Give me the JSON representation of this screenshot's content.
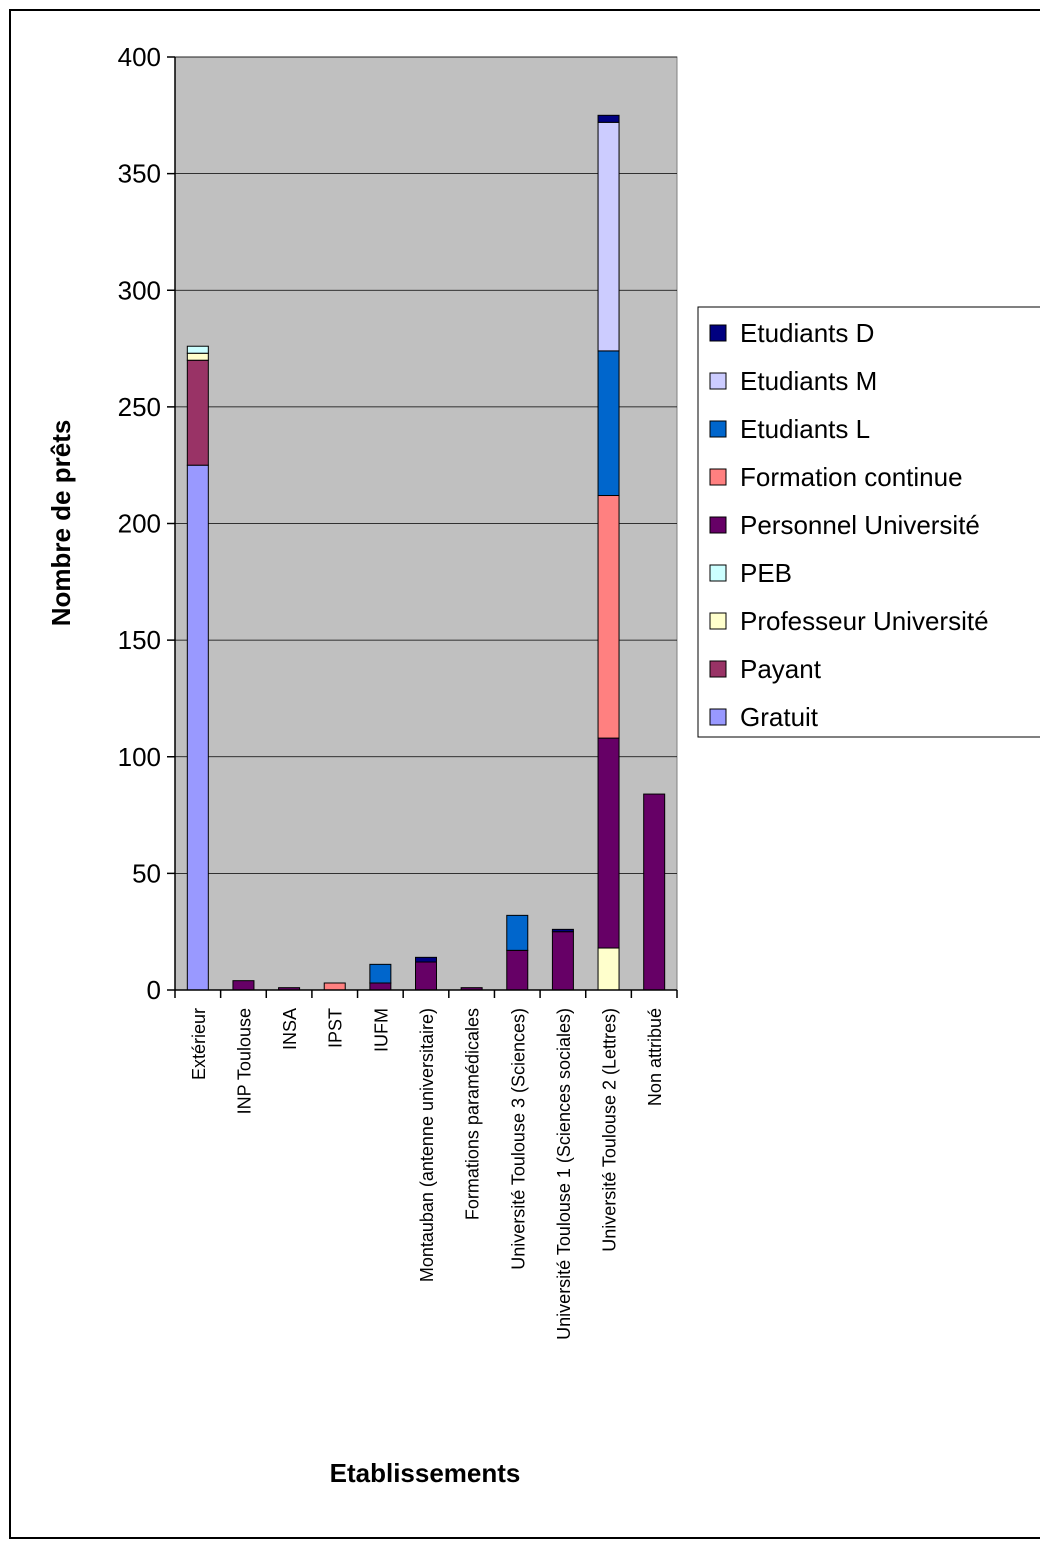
{
  "chart_data": {
    "type": "bar",
    "stacked": true,
    "title": "",
    "xlabel": "Etablissements",
    "ylabel": "Nombre de prêts",
    "ylim": [
      0,
      400
    ],
    "yticks": [
      0,
      50,
      100,
      150,
      200,
      250,
      300,
      350,
      400
    ],
    "grid": true,
    "plot_background": "#c0c0c0",
    "legend_position": "right",
    "categories": [
      "Extérieur",
      "INP Toulouse",
      "INSA",
      "IPST",
      "IUFM",
      "Montauban (antenne universitaire)",
      "Formations paramédicales",
      "Université Toulouse 3 (Sciences)",
      "Université Toulouse 1 (Sciences sociales)",
      "Université Toulouse 2 (Lettres)",
      "Non attribué"
    ],
    "series": [
      {
        "name": "Gratuit",
        "color": "#9999ff",
        "values": [
          225,
          0,
          0,
          0,
          0,
          0,
          0,
          0,
          0,
          0,
          0
        ]
      },
      {
        "name": "Payant",
        "color": "#993366",
        "values": [
          45,
          0,
          0,
          0,
          0,
          0,
          0,
          0,
          0,
          0,
          0
        ]
      },
      {
        "name": "Professeur Université",
        "color": "#ffffcc",
        "values": [
          3,
          0,
          0,
          0,
          0,
          0,
          0,
          0,
          0,
          18,
          0
        ]
      },
      {
        "name": "PEB",
        "color": "#ccffff",
        "values": [
          3,
          0,
          0,
          0,
          0,
          0,
          0,
          0,
          0,
          0,
          0
        ]
      },
      {
        "name": "Personnel Université",
        "color": "#660066",
        "values": [
          0,
          4,
          1,
          0,
          3,
          12,
          1,
          17,
          25,
          90,
          84
        ]
      },
      {
        "name": "Formation continue",
        "color": "#ff8080",
        "values": [
          0,
          0,
          0,
          3,
          0,
          0,
          0,
          0,
          0,
          104,
          0
        ]
      },
      {
        "name": "Etudiants L",
        "color": "#0066cc",
        "values": [
          0,
          0,
          0,
          0,
          8,
          0,
          0,
          15,
          0,
          62,
          0
        ]
      },
      {
        "name": "Etudiants M",
        "color": "#ccccff",
        "values": [
          0,
          0,
          0,
          0,
          0,
          0,
          0,
          0,
          0,
          98,
          0
        ]
      },
      {
        "name": "Etudiants D",
        "color": "#000080",
        "values": [
          0,
          0,
          0,
          0,
          0,
          2,
          0,
          0,
          1,
          3,
          0
        ]
      }
    ],
    "legend_order": [
      "Etudiants D",
      "Etudiants M",
      "Etudiants L",
      "Formation continue",
      "Personnel Université",
      "PEB",
      "Professeur Université",
      "Payant",
      "Gratuit"
    ]
  }
}
